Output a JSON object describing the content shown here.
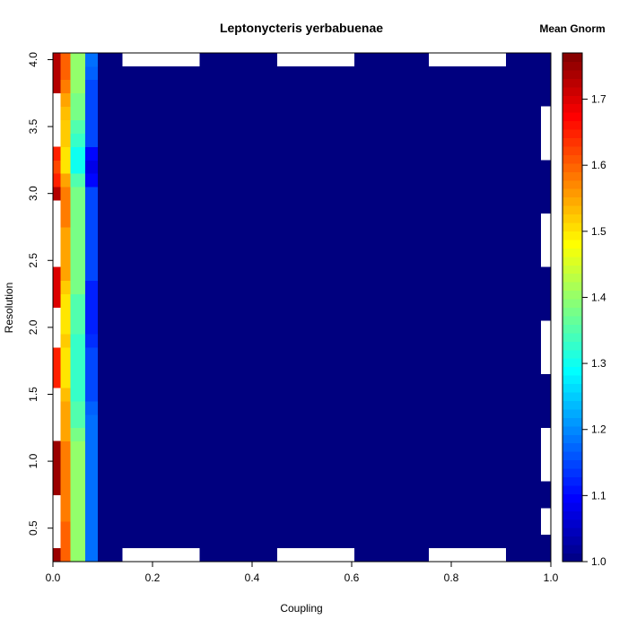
{
  "chart_data": {
    "type": "heatmap",
    "title": "Leptonycteris yerbabuenae",
    "xlabel": "Coupling",
    "ylabel": "Resolution",
    "legend_title": "Mean Gnorm",
    "xlim": [
      0.0,
      1.0
    ],
    "ylim": [
      0.25,
      4.05
    ],
    "x_ticks": [
      0.0,
      0.2,
      0.4,
      0.6,
      0.8,
      1.0
    ],
    "x_tick_labels": [
      "0.0",
      "0.2",
      "0.4",
      "0.6",
      "0.8",
      "1.0"
    ],
    "y_ticks": [
      0.5,
      1.0,
      1.5,
      2.0,
      2.5,
      3.0,
      3.5,
      4.0
    ],
    "y_tick_labels": [
      "0.5",
      "1.0",
      "1.5",
      "2.0",
      "2.5",
      "3.0",
      "3.5",
      "4.0"
    ],
    "colorbar_range": [
      1.0,
      1.77
    ],
    "colorbar_ticks": [
      1.0,
      1.1,
      1.2,
      1.3,
      1.4,
      1.5,
      1.6,
      1.7
    ],
    "colorbar_tick_labels": [
      "1.0",
      "1.1",
      "1.2",
      "1.3",
      "1.4",
      "1.5",
      "1.6",
      "1.7"
    ],
    "colormap": [
      "#00007F",
      "#0000FF",
      "#007FFF",
      "#00FFFF",
      "#7FFF7F",
      "#FFFF00",
      "#FF7F00",
      "#FF0000",
      "#7F0000"
    ],
    "resolution_values": [
      0.3,
      0.4,
      0.5,
      0.6,
      0.7,
      0.8,
      0.9,
      1.0,
      1.1,
      1.2,
      1.3,
      1.4,
      1.5,
      1.6,
      1.7,
      1.8,
      1.9,
      2.0,
      2.1,
      2.2,
      2.3,
      2.4,
      2.5,
      2.6,
      2.7,
      2.8,
      2.9,
      3.0,
      3.1,
      3.2,
      3.3,
      3.4,
      3.5,
      3.6,
      3.7,
      3.8,
      3.9,
      4.0
    ],
    "coupling_columns": [
      {
        "x_range": [
          0.0,
          0.015
        ],
        "values": [
          1.75,
          null,
          null,
          null,
          null,
          1.75,
          1.75,
          1.75,
          1.75,
          null,
          null,
          null,
          null,
          1.65,
          1.65,
          1.65,
          null,
          null,
          null,
          1.7,
          1.7,
          1.7,
          null,
          null,
          null,
          null,
          null,
          1.73,
          1.65,
          1.62,
          1.65,
          null,
          null,
          null,
          null,
          1.73,
          1.73,
          1.73
        ]
      },
      {
        "x_range": [
          0.015,
          0.035
        ],
        "values": [
          1.6,
          1.6,
          1.6,
          1.58,
          1.58,
          1.58,
          1.58,
          1.58,
          1.58,
          1.55,
          1.55,
          1.55,
          1.53,
          1.5,
          1.5,
          1.5,
          1.52,
          1.5,
          1.5,
          1.5,
          1.52,
          1.55,
          1.55,
          1.55,
          1.55,
          1.58,
          1.58,
          1.58,
          1.55,
          1.5,
          1.5,
          1.52,
          1.52,
          1.53,
          1.55,
          1.58,
          1.6,
          1.6
        ]
      },
      {
        "x_range": [
          0.035,
          0.065
        ],
        "values": [
          1.4,
          1.4,
          1.4,
          1.4,
          1.4,
          1.4,
          1.4,
          1.4,
          1.4,
          1.38,
          1.35,
          1.35,
          1.33,
          1.33,
          1.33,
          1.33,
          1.33,
          1.35,
          1.35,
          1.35,
          1.38,
          1.38,
          1.38,
          1.38,
          1.38,
          1.38,
          1.38,
          1.38,
          1.35,
          1.3,
          1.3,
          1.33,
          1.35,
          1.38,
          1.38,
          1.4,
          1.4,
          1.4
        ]
      },
      {
        "x_range": [
          0.065,
          0.09
        ],
        "values": [
          1.18,
          1.18,
          1.18,
          1.18,
          1.18,
          1.18,
          1.18,
          1.18,
          1.18,
          1.18,
          1.18,
          1.17,
          1.15,
          1.15,
          1.15,
          1.15,
          1.13,
          1.12,
          1.12,
          1.12,
          1.12,
          1.15,
          1.15,
          1.15,
          1.15,
          1.15,
          1.15,
          1.15,
          1.1,
          1.08,
          1.1,
          1.15,
          1.15,
          1.15,
          1.15,
          1.15,
          1.17,
          1.18
        ]
      },
      {
        "x_range": [
          0.09,
          1.0
        ],
        "values": [
          1.0,
          1.0,
          1.0,
          1.0,
          1.0,
          1.0,
          1.0,
          1.0,
          1.0,
          1.0,
          1.0,
          1.0,
          1.0,
          1.0,
          1.0,
          1.0,
          1.0,
          1.0,
          1.0,
          1.0,
          1.0,
          1.0,
          1.0,
          1.0,
          1.0,
          1.0,
          1.0,
          1.0,
          1.0,
          1.0,
          1.0,
          1.0,
          1.0,
          1.0,
          1.0,
          1.0,
          1.0,
          1.0
        ]
      }
    ],
    "missing_cells": [
      {
        "x_range": [
          0.14,
          0.295
        ],
        "y_range": [
          0.25,
          0.35
        ]
      },
      {
        "x_range": [
          0.45,
          0.605
        ],
        "y_range": [
          0.25,
          0.35
        ]
      },
      {
        "x_range": [
          0.755,
          0.91
        ],
        "y_range": [
          0.25,
          0.35
        ]
      },
      {
        "x_range": [
          0.14,
          0.295
        ],
        "y_range": [
          3.95,
          4.05
        ]
      },
      {
        "x_range": [
          0.45,
          0.605
        ],
        "y_range": [
          3.95,
          4.05
        ]
      },
      {
        "x_range": [
          0.755,
          0.91
        ],
        "y_range": [
          3.95,
          4.05
        ]
      },
      {
        "x_range": [
          0.98,
          1.0
        ],
        "y_range": [
          0.45,
          0.65
        ]
      },
      {
        "x_range": [
          0.98,
          1.0
        ],
        "y_range": [
          0.85,
          1.25
        ]
      },
      {
        "x_range": [
          0.98,
          1.0
        ],
        "y_range": [
          1.65,
          2.05
        ]
      },
      {
        "x_range": [
          0.98,
          1.0
        ],
        "y_range": [
          2.45,
          2.85
        ]
      },
      {
        "x_range": [
          0.98,
          1.0
        ],
        "y_range": [
          3.25,
          3.65
        ]
      }
    ]
  }
}
